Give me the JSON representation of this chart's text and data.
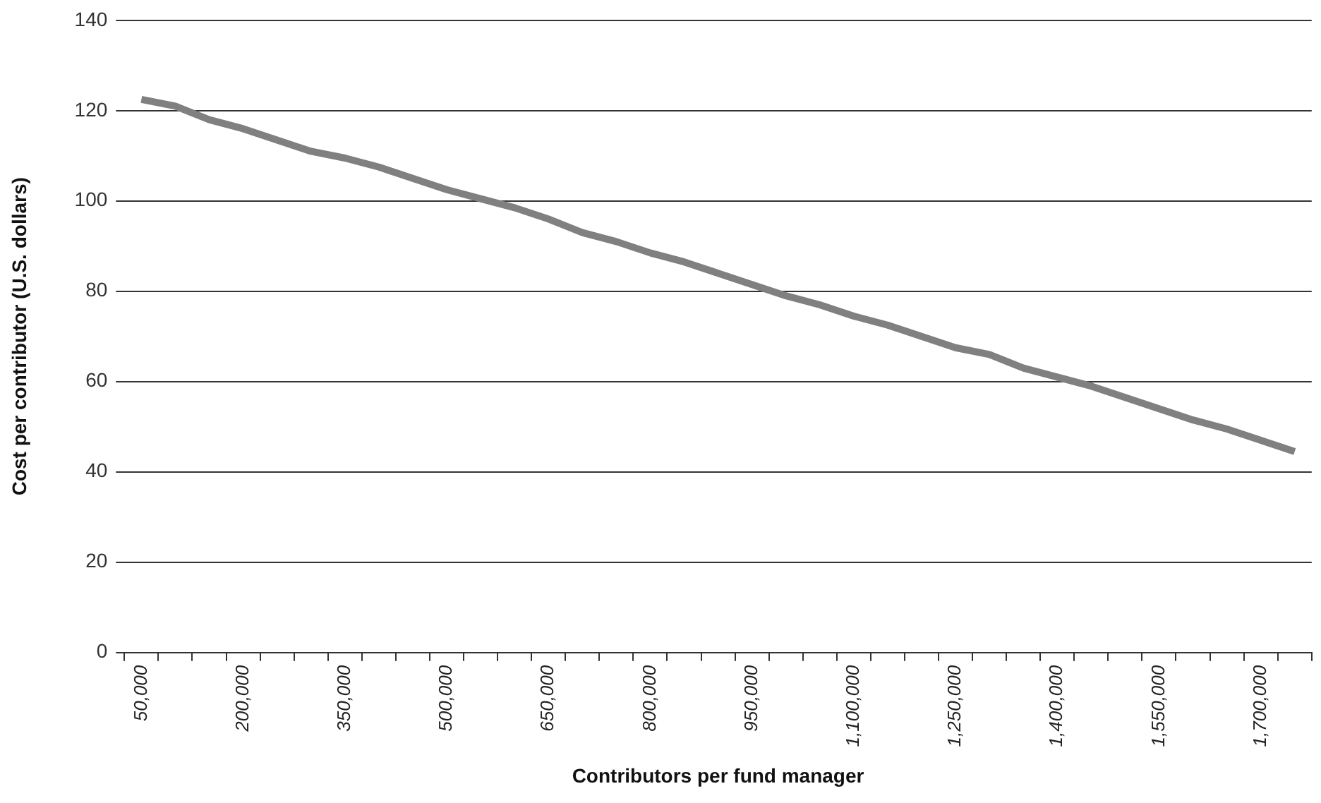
{
  "chart_data": {
    "type": "line",
    "xlabel": "Contributors per fund manager",
    "ylabel": "Cost per contributor (U.S. dollars)",
    "categories": [
      "50,000",
      null,
      null,
      "200,000",
      null,
      null,
      "350,000",
      null,
      null,
      "500,000",
      null,
      null,
      "650,000",
      null,
      null,
      "800,000",
      null,
      null,
      "950,000",
      null,
      null,
      "1,100,000",
      null,
      null,
      "1,250,000",
      null,
      null,
      "1,400,000",
      null,
      null,
      "1,550,000",
      null,
      null,
      "1,700,000",
      null
    ],
    "series": [
      {
        "color": "#808080",
        "values": [
          122.5,
          121,
          118,
          116,
          113.5,
          111,
          109.5,
          107.5,
          105,
          102.5,
          100.5,
          98.5,
          96,
          93,
          91,
          88.5,
          86.5,
          84,
          81.5,
          79,
          77,
          74.5,
          72.5,
          70,
          67.5,
          66,
          63,
          61,
          59,
          56.5,
          54,
          51.5,
          49.5,
          47,
          44.5
        ]
      }
    ],
    "ylim": [
      0,
      140
    ],
    "yticks": [
      0,
      20,
      40,
      60,
      80,
      100,
      120,
      140
    ],
    "grid": "y",
    "legend": false,
    "marker": "none",
    "line_style": "solid"
  }
}
